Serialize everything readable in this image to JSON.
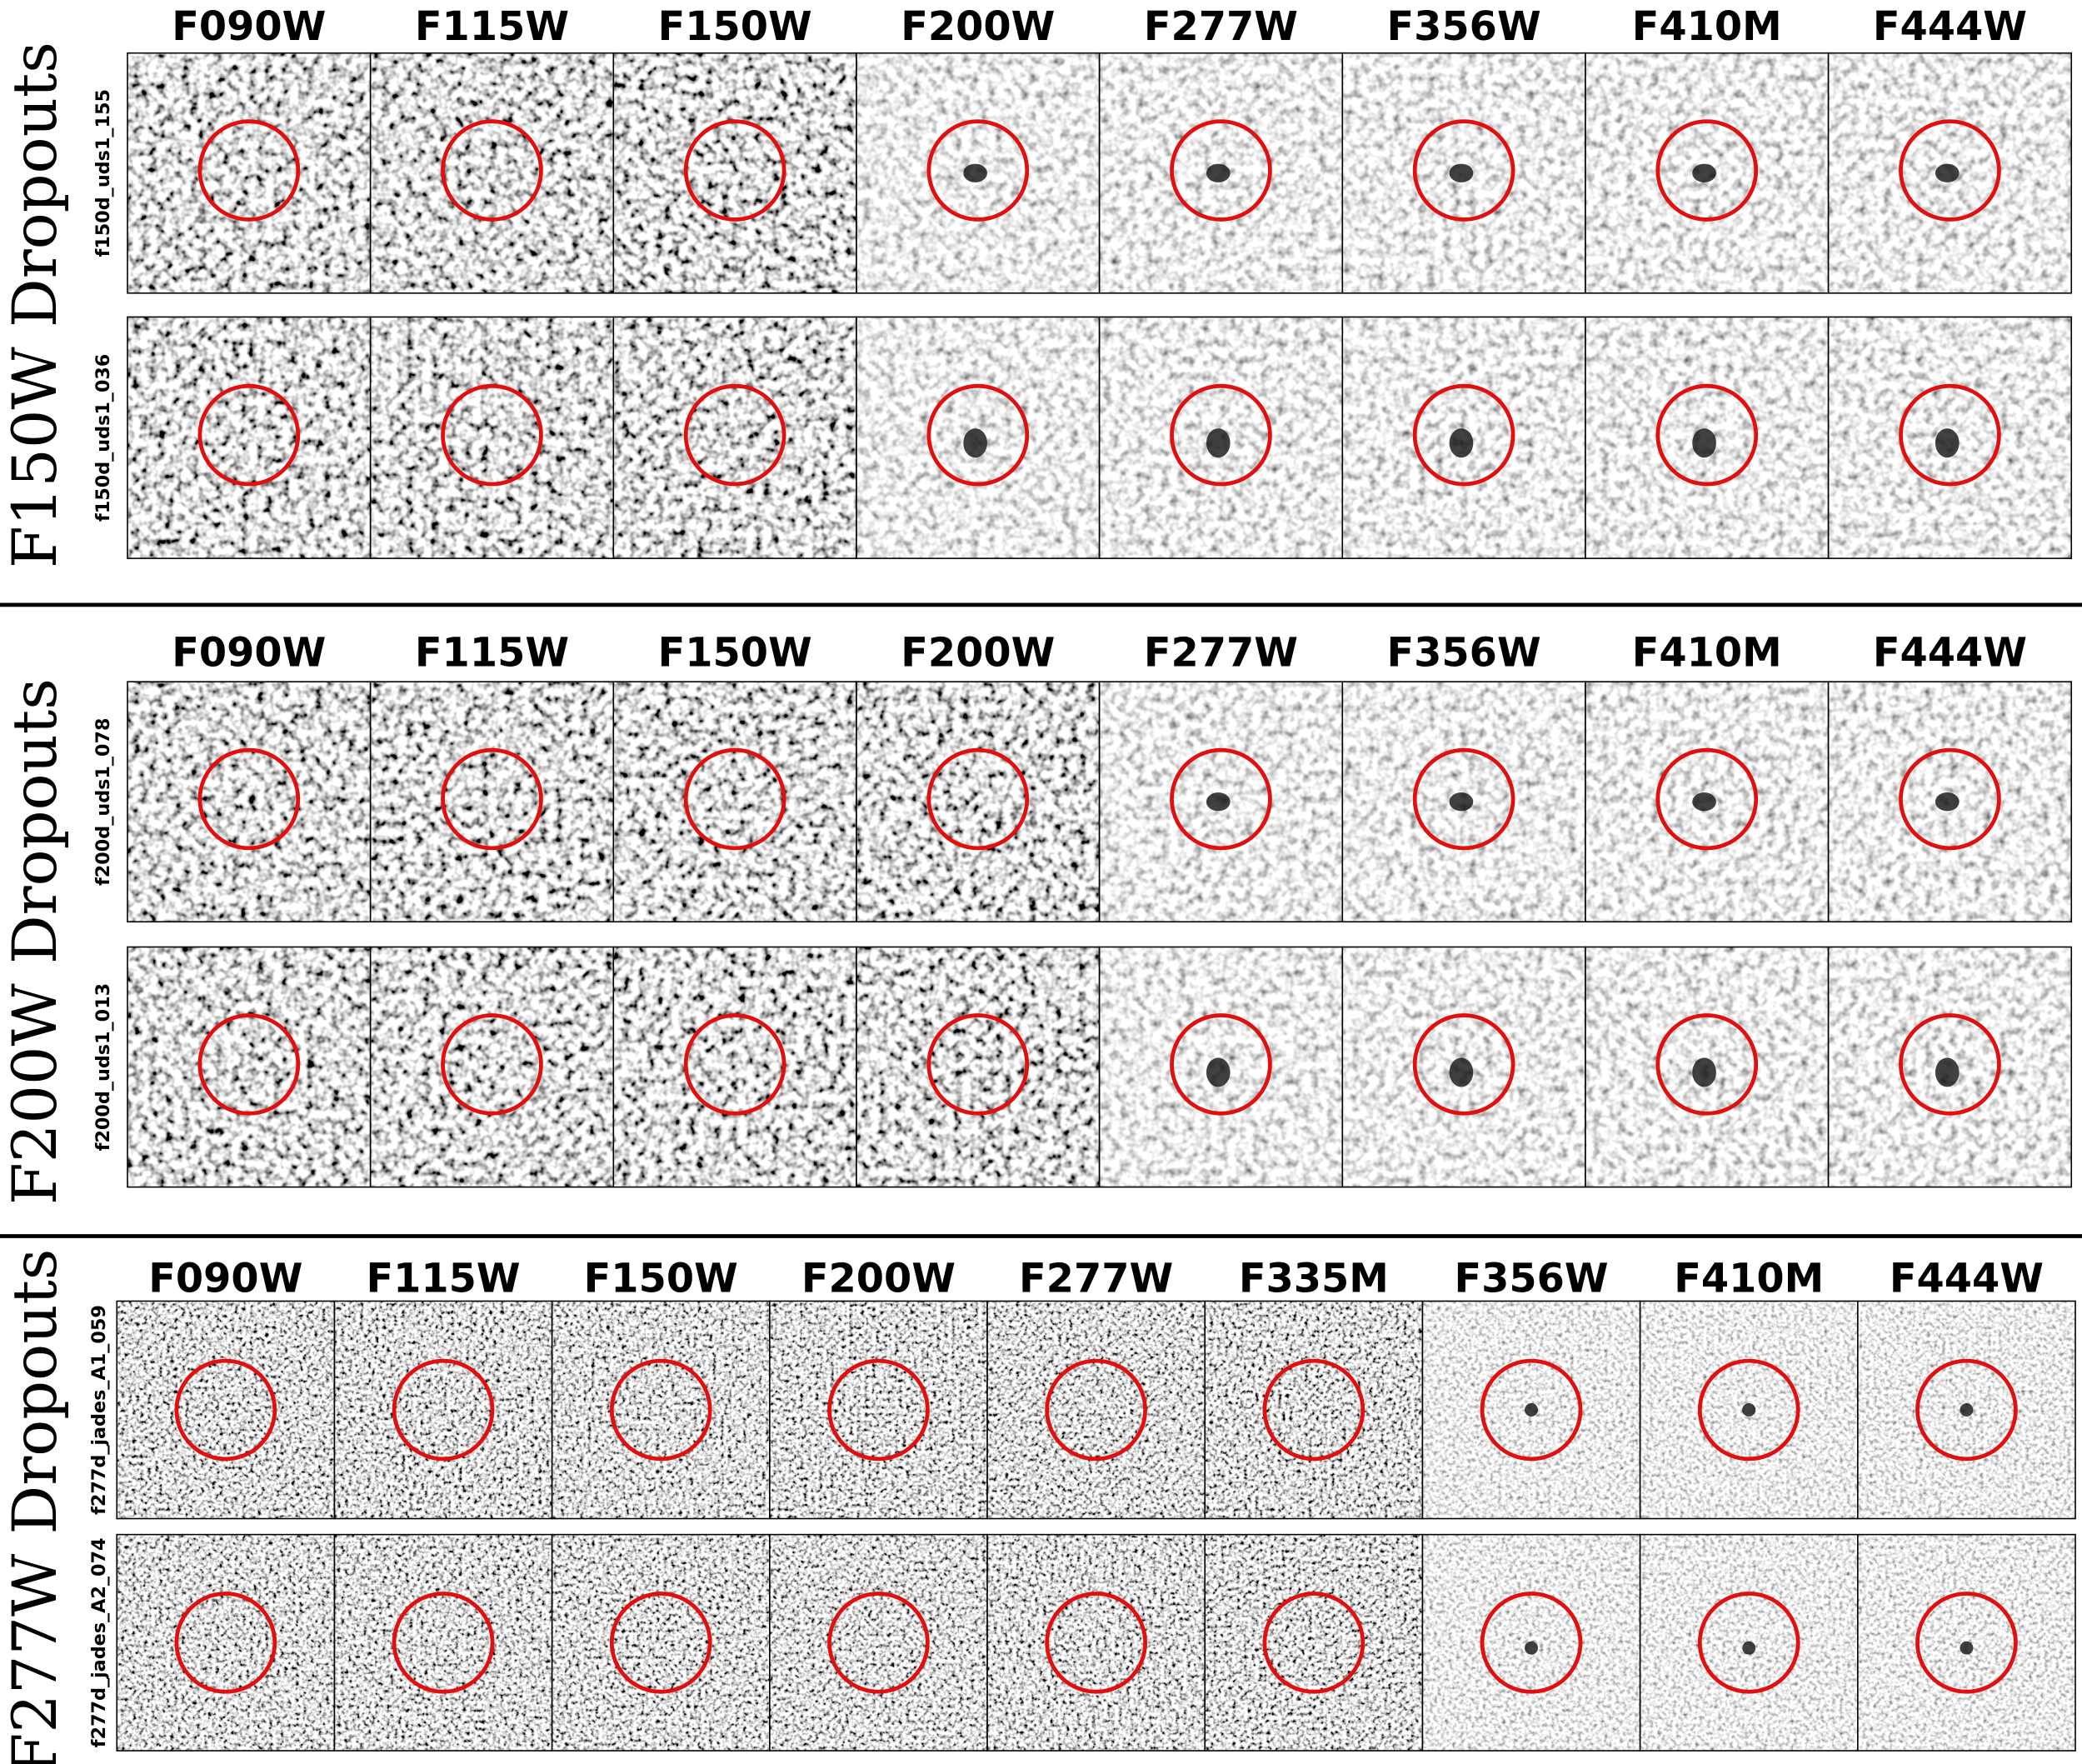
{
  "panels": [
    {
      "title": "F150W Dropouts",
      "filters": [
        "F090W",
        "F115W",
        "F150W",
        "F200W",
        "F277W",
        "F356W",
        "F410M",
        "F444W"
      ],
      "rows": [
        {
          "id": "f150d_uds1_155"
        },
        {
          "id": "f150d_uds1_036"
        }
      ]
    },
    {
      "title": "F200W Dropouts",
      "filters": [
        "F090W",
        "F115W",
        "F150W",
        "F200W",
        "F277W",
        "F356W",
        "F410M",
        "F444W"
      ],
      "rows": [
        {
          "id": "f200d_uds1_078"
        },
        {
          "id": "f200d_uds1_013"
        }
      ]
    },
    {
      "title": "F277W Dropouts",
      "filters": [
        "F090W",
        "F115W",
        "F150W",
        "F200W",
        "F277W",
        "F335M",
        "F356W",
        "F410M",
        "F444W"
      ],
      "rows": [
        {
          "id": "f277d_jades_A1_059"
        },
        {
          "id": "f277d_jades_A2_074"
        }
      ]
    }
  ]
}
